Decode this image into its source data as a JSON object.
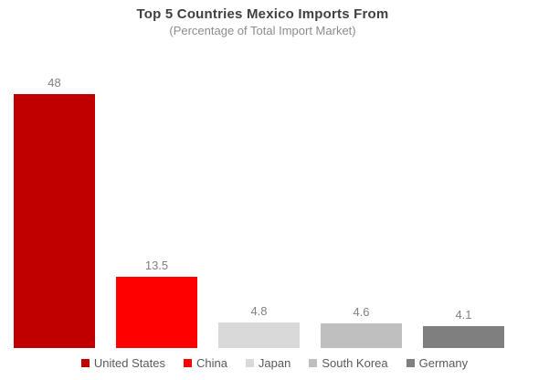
{
  "chart_data": {
    "type": "bar",
    "title": "Top 5 Countries Mexico Imports From",
    "subtitle": "(Percentage of Total Import Market)",
    "categories": [
      "United States",
      "China",
      "Japan",
      "South Korea",
      "Germany"
    ],
    "values": [
      48,
      13.5,
      4.8,
      4.6,
      4.1
    ],
    "value_labels": [
      "48",
      "13.5",
      "4.8",
      "4.6",
      "4.1"
    ],
    "bar_colors": [
      "#C00000",
      "#FF0000",
      "#D9D9D9",
      "#BFBFBF",
      "#7F7F7F"
    ],
    "ylim": [
      0,
      48
    ],
    "grid": false,
    "axes_visible": false,
    "data_label_color": "#808080",
    "title_color": "#404040",
    "subtitle_color": "#8C8C8C",
    "legend_position": "bottom",
    "legend_text_color": "#595959",
    "background_color": "#FFFFFF"
  }
}
